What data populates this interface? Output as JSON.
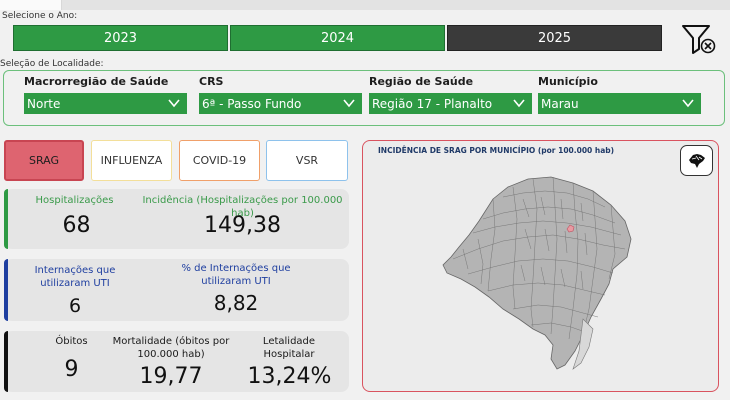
{
  "year_selector": {
    "label": "Selecione o Ano:",
    "years": [
      "2023",
      "2024",
      "2025"
    ],
    "selected": "2025"
  },
  "location": {
    "label": "Seleção de Localidade:",
    "fields": [
      {
        "caption": "Macrorregião de Saúde",
        "value": "Norte"
      },
      {
        "caption": "CRS",
        "value": "6ª - Passo Fundo"
      },
      {
        "caption": "Região de Saúde",
        "value": "Região 17 - Planalto"
      },
      {
        "caption": "Município",
        "value": "Marau"
      }
    ]
  },
  "tabs": [
    "SRAG",
    "INFLUENZA",
    "COVID-19",
    "VSR"
  ],
  "active_tab": "SRAG",
  "cards": {
    "hosp": {
      "title": "Hospitalizações",
      "value": "68",
      "incidence_title": "Incidência (Hospitalizações por 100.000 hab)",
      "incidence_value": "149,38"
    },
    "uti": {
      "title": "Internações que utilizaram UTI",
      "value": "6",
      "pct_title": "% de Internações que utilizaram UTI",
      "pct_value": "8,82"
    },
    "obitos": {
      "title": "Óbitos",
      "value": "9",
      "mort_title": "Mortalidade (óbitos por 100.000 hab)",
      "mort_value": "19,77",
      "let_title": "Letalidade Hospitalar",
      "let_value": "13,24%"
    }
  },
  "map": {
    "title": "INCIDÊNCIA DE SRAG POR MUNICÍPIO (por 100.000 hab)"
  },
  "colors": {
    "green": "#2e9a44",
    "dark": "#3a3a3a",
    "srag_red": "#de6470",
    "hosp_accent": "#2e9a44",
    "uti_accent": "#1f3fa0",
    "obitos_accent": "#111111",
    "uti_text": "#1f3fa0",
    "hosp_text": "#3a9a4a"
  }
}
